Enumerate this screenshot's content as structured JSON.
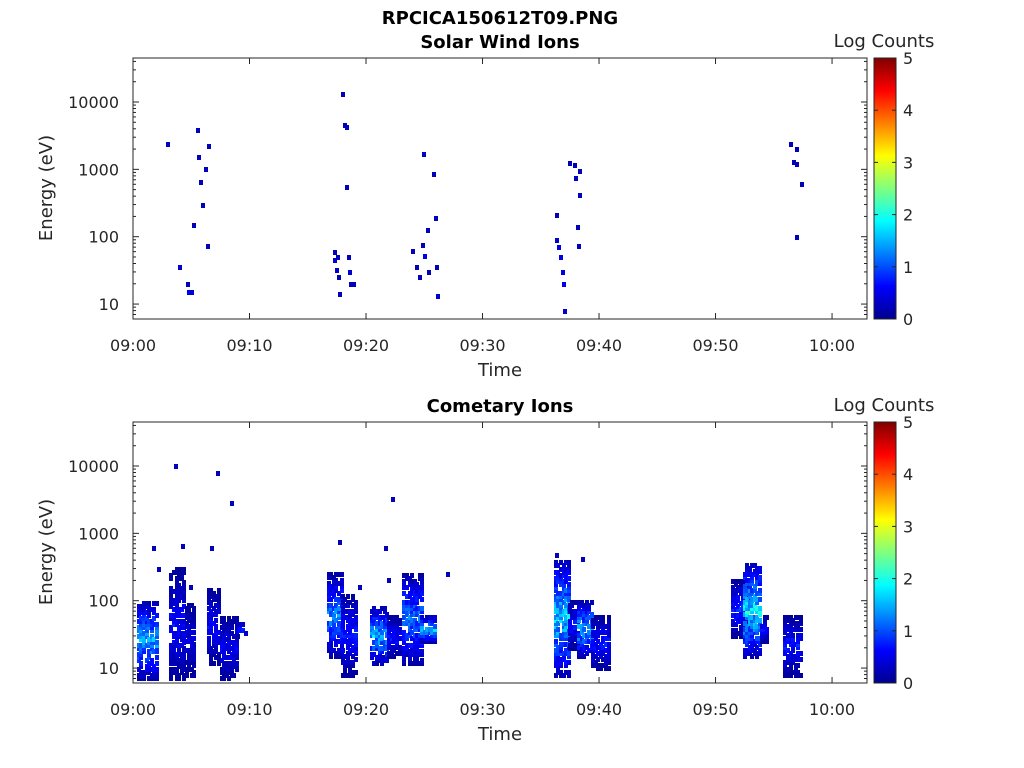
{
  "figure_title": "RPCICA150612T09.PNG",
  "chart_data": [
    {
      "type": "heatmap",
      "title": "Solar Wind Ions",
      "xlabel": "Time",
      "ylabel": "Energy (eV)",
      "x_ticks": [
        "09:00",
        "09:10",
        "09:20",
        "09:30",
        "09:40",
        "09:50",
        "10:00"
      ],
      "x_range_min": [
        0,
        63
      ],
      "y_ticks": [
        "10",
        "100",
        "1000",
        "10000"
      ],
      "y_scale": "log",
      "y_range_eV": [
        6,
        45000
      ],
      "colorbar": {
        "label": "Log Counts",
        "ticks": [
          "0",
          "1",
          "2",
          "3",
          "4",
          "5"
        ],
        "range": [
          0,
          5
        ],
        "colormap": "jet"
      },
      "cells": [
        [
          3.0,
          2400,
          0.3
        ],
        [
          4.0,
          36,
          0.4
        ],
        [
          4.7,
          20,
          0.3
        ],
        [
          4.8,
          15,
          0.5
        ],
        [
          5.1,
          15,
          0.4
        ],
        [
          5.2,
          150,
          0.3
        ],
        [
          5.6,
          3900,
          0.3
        ],
        [
          5.7,
          1500,
          0.3
        ],
        [
          5.8,
          650,
          0.3
        ],
        [
          6.0,
          300,
          0.3
        ],
        [
          6.3,
          1000,
          0.3
        ],
        [
          6.5,
          2200,
          0.3
        ],
        [
          6.4,
          72,
          0.3
        ],
        [
          17.3,
          60,
          0.3
        ],
        [
          17.3,
          45,
          0.4
        ],
        [
          17.5,
          32,
          0.4
        ],
        [
          17.6,
          50,
          0.3
        ],
        [
          17.7,
          25,
          0.3
        ],
        [
          17.8,
          14,
          0.3
        ],
        [
          18.0,
          13000,
          0.3
        ],
        [
          18.2,
          4500,
          0.3
        ],
        [
          18.4,
          4200,
          0.3
        ],
        [
          18.4,
          550,
          0.3
        ],
        [
          18.5,
          50,
          0.3
        ],
        [
          18.6,
          30,
          0.4
        ],
        [
          18.7,
          20,
          0.3
        ],
        [
          19.0,
          20,
          0.3
        ],
        [
          24.0,
          62,
          0.3
        ],
        [
          24.4,
          36,
          0.3
        ],
        [
          24.6,
          25,
          0.3
        ],
        [
          24.9,
          75,
          0.3
        ],
        [
          25.0,
          1700,
          0.3
        ],
        [
          25.1,
          52,
          0.5
        ],
        [
          25.3,
          125,
          0.3
        ],
        [
          25.4,
          30,
          0.3
        ],
        [
          25.8,
          850,
          0.3
        ],
        [
          26.0,
          190,
          0.3
        ],
        [
          26.1,
          36,
          0.3
        ],
        [
          26.2,
          13,
          0.4
        ],
        [
          36.4,
          210,
          0.3
        ],
        [
          36.4,
          90,
          0.4
        ],
        [
          36.6,
          70,
          0.5
        ],
        [
          36.7,
          50,
          0.5
        ],
        [
          36.9,
          30,
          0.5
        ],
        [
          37.0,
          20,
          0.5
        ],
        [
          37.1,
          8,
          0.4
        ],
        [
          37.5,
          1250,
          0.3
        ],
        [
          37.9,
          1150,
          0.3
        ],
        [
          38.0,
          750,
          0.3
        ],
        [
          38.2,
          140,
          0.3
        ],
        [
          38.3,
          72,
          0.3
        ],
        [
          38.4,
          950,
          0.3
        ],
        [
          38.4,
          420,
          0.3
        ],
        [
          56.5,
          2400,
          0.3
        ],
        [
          56.7,
          1300,
          0.3
        ],
        [
          57.0,
          2000,
          0.3
        ],
        [
          57.0,
          1200,
          0.3
        ],
        [
          57.0,
          100,
          0.3
        ],
        [
          57.4,
          600,
          0.3
        ]
      ]
    },
    {
      "type": "heatmap",
      "title": "Cometary Ions",
      "xlabel": "Time",
      "ylabel": "Energy (eV)",
      "x_ticks": [
        "09:00",
        "09:10",
        "09:20",
        "09:30",
        "09:40",
        "09:50",
        "10:00"
      ],
      "x_range_min": [
        0,
        63
      ],
      "y_ticks": [
        "10",
        "100",
        "1000",
        "10000"
      ],
      "y_scale": "log",
      "y_range_eV": [
        6,
        45000
      ],
      "colorbar": {
        "label": "Log Counts",
        "ticks": [
          "0",
          "1",
          "2",
          "3",
          "4",
          "5"
        ],
        "range": [
          0,
          5
        ],
        "colormap": "jet"
      },
      "bursts": [
        [
          0.5,
          2.2,
          7,
          100,
          1.8
        ],
        [
          3.3,
          4.5,
          7,
          300,
          0.8
        ],
        [
          4.6,
          5.3,
          8,
          90,
          0.6
        ],
        [
          6.5,
          7.5,
          12,
          150,
          0.8
        ],
        [
          7.6,
          9.0,
          7,
          60,
          0.7
        ],
        [
          9.0,
          9.8,
          30,
          50,
          1.0
        ],
        [
          16.8,
          18.0,
          15,
          250,
          1.6
        ],
        [
          18.0,
          19.3,
          8,
          130,
          0.9
        ],
        [
          20.5,
          22.0,
          12,
          80,
          1.9
        ],
        [
          22.0,
          23.0,
          15,
          60,
          0.9
        ],
        [
          23.3,
          25.0,
          12,
          250,
          1.5
        ],
        [
          24.8,
          26.0,
          25,
          60,
          1.9
        ],
        [
          36.3,
          37.5,
          8,
          400,
          2.1
        ],
        [
          37.5,
          38.2,
          20,
          100,
          0.9
        ],
        [
          38.3,
          39.5,
          15,
          100,
          1.9
        ],
        [
          39.5,
          41.0,
          10,
          60,
          0.9
        ],
        [
          51.5,
          53.0,
          30,
          200,
          1.0
        ],
        [
          52.5,
          54.0,
          15,
          350,
          2.2
        ],
        [
          54.0,
          54.5,
          25,
          60,
          0.9
        ],
        [
          56.0,
          57.5,
          8,
          60,
          0.9
        ]
      ],
      "cells": [
        [
          1.8,
          600,
          0.3
        ],
        [
          2.2,
          300,
          0.3
        ],
        [
          3.7,
          10000,
          0.3
        ],
        [
          4.3,
          650,
          0.3
        ],
        [
          5.0,
          160,
          0.3
        ],
        [
          6.8,
          600,
          0.3
        ],
        [
          7.3,
          7800,
          0.3
        ],
        [
          8.5,
          2800,
          0.3
        ],
        [
          17.8,
          750,
          0.3
        ],
        [
          19.5,
          160,
          0.3
        ],
        [
          21.7,
          600,
          0.3
        ],
        [
          22.0,
          200,
          0.3
        ],
        [
          22.3,
          3200,
          0.3
        ],
        [
          27.0,
          250,
          0.3
        ],
        [
          36.4,
          480,
          0.3
        ],
        [
          38.6,
          420,
          0.3
        ]
      ]
    }
  ]
}
